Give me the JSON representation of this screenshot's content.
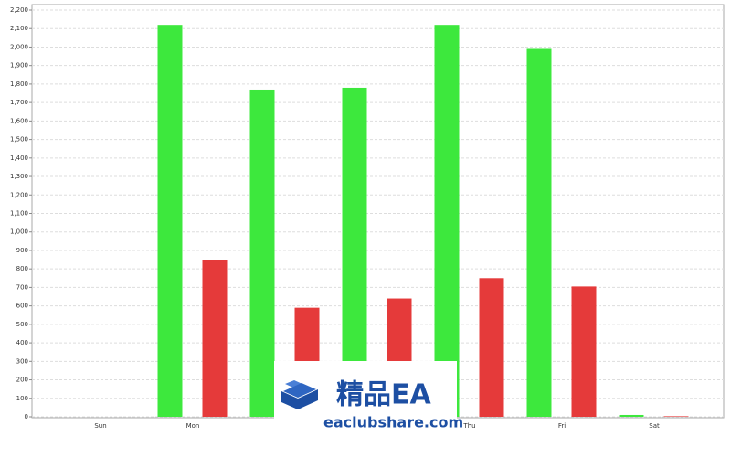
{
  "chart_data": {
    "type": "bar",
    "categories": [
      "Sun",
      "Mon",
      null,
      null,
      "Thu",
      "Fri",
      "Sat"
    ],
    "series": [
      {
        "color": "#3de83d",
        "values": [
          0,
          2120,
          1770,
          1780,
          2120,
          1990,
          10
        ]
      },
      {
        "color": "#e53a3a",
        "values": [
          0,
          850,
          590,
          640,
          750,
          705,
          3
        ]
      }
    ],
    "ylim": [
      0,
      2200
    ],
    "yticks": [
      0,
      100,
      200,
      300,
      400,
      500,
      600,
      700,
      800,
      900,
      {
        "value": 1000,
        "label": "1,000"
      },
      {
        "value": 1100,
        "label": "1,100"
      },
      {
        "value": 1200,
        "label": "1,200"
      },
      {
        "value": 1300,
        "label": "1,300"
      },
      {
        "value": 1400,
        "label": "1,400"
      },
      {
        "value": 1500,
        "label": "1,500"
      },
      {
        "value": 1600,
        "label": "1,600"
      },
      {
        "value": 1700,
        "label": "1,700"
      },
      {
        "value": 1800,
        "label": "1,800"
      },
      {
        "value": 1900,
        "label": "1,900"
      },
      {
        "value": 2000,
        "label": "2,000"
      },
      {
        "value": 2100,
        "label": "2,100"
      },
      {
        "value": 2200,
        "label": "2,200"
      }
    ],
    "grid": true
  },
  "watermark": {
    "title": "精品EA",
    "subtitle": "eaclubshare.com"
  }
}
